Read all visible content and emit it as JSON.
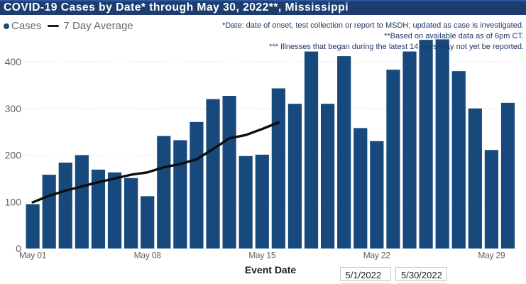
{
  "header": {
    "title": "COVID-19 Cases by Date* through May 30, 2022**, Mississippi"
  },
  "legend": {
    "cases_label": "Cases",
    "avg_label": "7 Day Average"
  },
  "notes": {
    "line1": "*Date: date of onset, test collection or report to MSDH; updated as case is investigated.",
    "line2": "**Based on available data as of 6pm CT.",
    "line3": "*** Illnesses that began during the latest 14 days may not yet be reported."
  },
  "x_axis_title": "Event Date",
  "filters": {
    "start_date": "5/1/2022",
    "end_date": "5/30/2022"
  },
  "colors": {
    "bar": "#17497d",
    "header_bg": "#1d3d6e",
    "header_accent": "#2b58a5",
    "avg_line": "#0d0d0d",
    "grid": "#d2d2d2",
    "axis_text": "#616161",
    "notes_text": "#1f3864"
  },
  "chart_data": {
    "type": "bar",
    "title": "COVID-19 Cases by Date through May 30, 2022, Mississippi",
    "xlabel": "Event Date",
    "ylabel": "",
    "ylim": [
      0,
      450
    ],
    "y_ticks": [
      0,
      100,
      200,
      300,
      400
    ],
    "grid": "dotted-horizontal",
    "legend_position": "top-left",
    "categories": [
      "May 01",
      "May 02",
      "May 03",
      "May 04",
      "May 05",
      "May 06",
      "May 07",
      "May 08",
      "May 09",
      "May 10",
      "May 11",
      "May 12",
      "May 13",
      "May 14",
      "May 15",
      "May 16",
      "May 17",
      "May 18",
      "May 19",
      "May 20",
      "May 21",
      "May 22",
      "May 23",
      "May 24",
      "May 25",
      "May 26",
      "May 27",
      "May 28",
      "May 29",
      "May 30"
    ],
    "x_tick_labels": [
      "May 01",
      "May 08",
      "May 15",
      "May 22",
      "May 29"
    ],
    "x_tick_indices": [
      0,
      7,
      14,
      21,
      28
    ],
    "series": [
      {
        "name": "Cases",
        "type": "bar",
        "values": [
          95,
          158,
          184,
          200,
          169,
          163,
          151,
          112,
          241,
          232,
          271,
          320,
          327,
          198,
          201,
          343,
          310,
          422,
          310,
          412,
          258,
          230,
          383,
          422,
          447,
          448,
          380,
          300,
          211,
          312
        ]
      },
      {
        "name": "7 Day Average",
        "type": "line",
        "values": [
          99,
          113,
          124,
          133,
          142,
          150,
          158,
          163,
          174,
          181,
          191,
          213,
          236,
          243,
          256,
          270
        ]
      }
    ]
  }
}
